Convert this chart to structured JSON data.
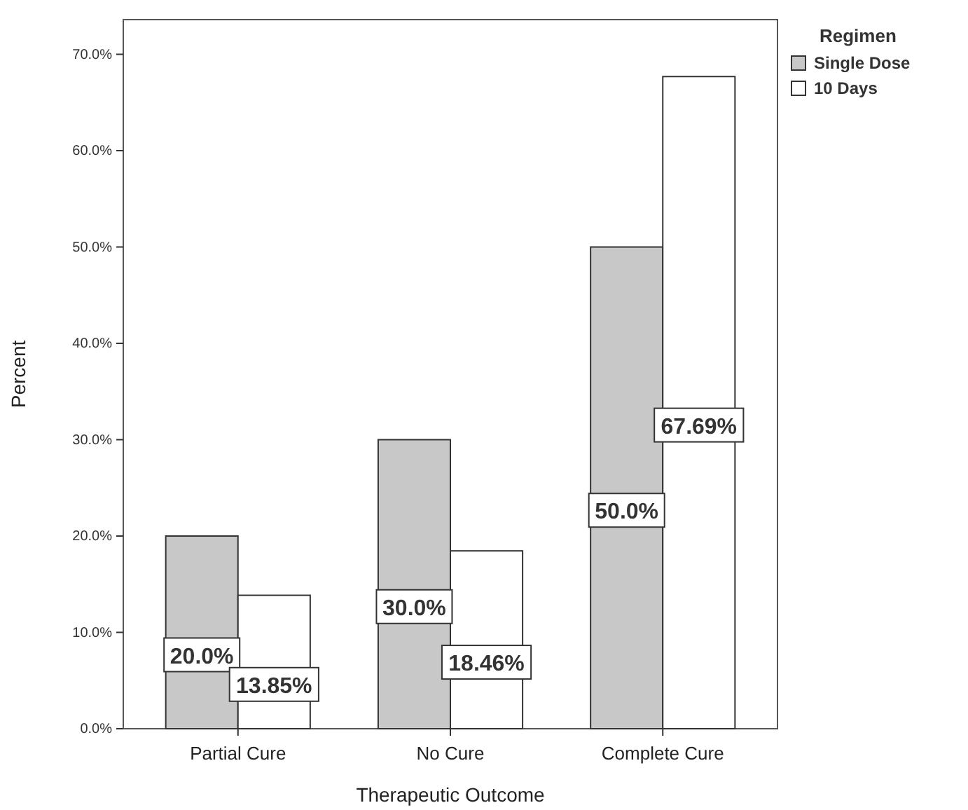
{
  "chart_data": {
    "type": "bar",
    "xlabel": "Therapeutic Outcome",
    "ylabel": "Percent",
    "legend_title": "Regimen",
    "legend": "top right",
    "categories": [
      "Partial Cure",
      "No Cure",
      "Complete Cure"
    ],
    "series": [
      {
        "name": "Single Dose",
        "color": "#c8c8c8",
        "values": [
          20,
          30,
          50
        ],
        "value_labels": [
          "20.0%",
          "30.0%",
          "50.0%"
        ]
      },
      {
        "name": "10 Days",
        "color": "#ffffff",
        "values": [
          13.85,
          18.46,
          67.69
        ],
        "value_labels": [
          "13.85%",
          "18.46%",
          "67.69%"
        ]
      }
    ],
    "ylim": [
      0,
      73.6
    ],
    "yticks": [
      {
        "value": 0,
        "label": "0.0%"
      },
      {
        "value": 10,
        "label": "10.0%"
      },
      {
        "value": 20,
        "label": "20.0%"
      },
      {
        "value": 30,
        "label": "30.0%"
      },
      {
        "value": 40,
        "label": "40.0%"
      },
      {
        "value": 50,
        "label": "50.0%"
      },
      {
        "value": 60,
        "label": "60.0%"
      },
      {
        "value": 70,
        "label": "70.0%"
      }
    ],
    "grid": false
  }
}
